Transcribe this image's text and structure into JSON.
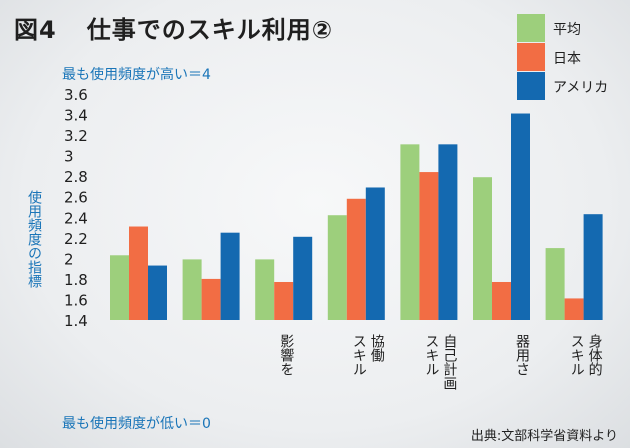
{
  "title": {
    "number": "図4",
    "text": "仕事でのスキル利用②"
  },
  "legend": [
    {
      "label": "平均",
      "color": "#9dcf7c"
    },
    {
      "label": "日本",
      "color": "#f26d44"
    },
    {
      "label": "アメリカ",
      "color": "#1469b0"
    }
  ],
  "y_top_note": "最も使用頻度が高い＝4",
  "y_bottom_note": "最も使用頻度が低い＝0",
  "y_axis_label": "使用頻度の指標",
  "source": "出典:文部科学省資料より",
  "chart_data": {
    "type": "bar",
    "categories": [
      [
        "",
        ""
      ],
      [
        "",
        ""
      ],
      [
        "",
        "影響を"
      ],
      [
        "協働",
        "スキル"
      ],
      [
        "自己計画",
        "スキル"
      ],
      [
        "器用さ",
        ""
      ],
      [
        "身体的",
        "スキル"
      ]
    ],
    "series": [
      {
        "name": "平均",
        "values": [
          2.03,
          1.99,
          1.99,
          2.42,
          3.11,
          2.79,
          2.1
        ]
      },
      {
        "name": "日本",
        "values": [
          2.31,
          1.8,
          1.77,
          2.58,
          2.84,
          1.77,
          1.61
        ]
      },
      {
        "name": "アメリカ",
        "values": [
          1.93,
          2.25,
          2.21,
          2.69,
          3.11,
          3.41,
          2.43
        ]
      }
    ],
    "yticks": [
      "3.6",
      "3.4",
      "3.2",
      "3",
      "2.8",
      "2.6",
      "2.4",
      "2.2",
      "2",
      "1.8",
      "1.6",
      "1.4"
    ],
    "ylim": [
      1.4,
      3.6
    ],
    "grid": false,
    "legend_position": "top-right"
  }
}
